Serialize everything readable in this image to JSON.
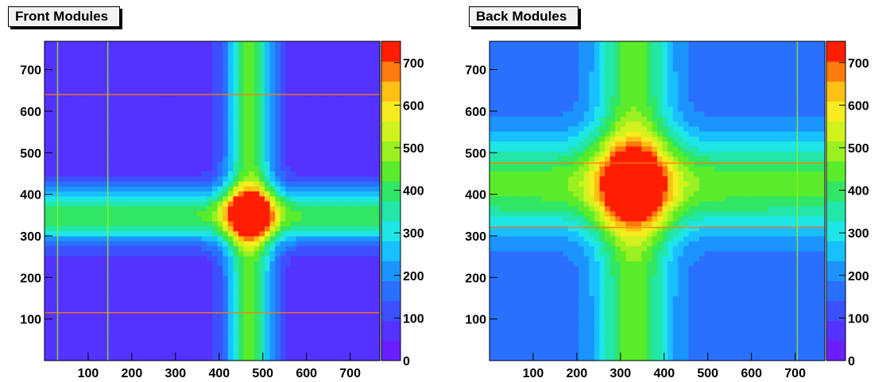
{
  "chart_data": [
    {
      "type": "heatmap",
      "title": "Front Modules",
      "xlabel": "",
      "ylabel": "",
      "xlim": [
        0,
        768
      ],
      "ylim": [
        0,
        768
      ],
      "zlim": [
        0,
        750
      ],
      "x_ticks": [
        "100",
        "200",
        "300",
        "400",
        "500",
        "600",
        "700"
      ],
      "y_ticks": [
        "100",
        "200",
        "300",
        "400",
        "500",
        "600",
        "700"
      ],
      "colorbar_ticks": [
        "0",
        "100",
        "200",
        "300",
        "400",
        "500",
        "600",
        "700"
      ],
      "hot_spot": {
        "x": 470,
        "y": 355,
        "peak": 750
      },
      "vertical_band": {
        "center": 470,
        "half_width": 55,
        "level": 430
      },
      "horizontal_band": {
        "center": 350,
        "half_width": 65,
        "level": 420
      },
      "background_level": 50,
      "bright_lines": {
        "rows": [
          115,
          640
        ],
        "cols": [
          145,
          30
        ]
      },
      "legend": "colorbar-right"
    },
    {
      "type": "heatmap",
      "title": "Back Modules",
      "xlabel": "",
      "ylabel": "",
      "xlim": [
        0,
        768
      ],
      "ylim": [
        0,
        768
      ],
      "zlim": [
        0,
        750
      ],
      "x_ticks": [
        "100",
        "200",
        "300",
        "400",
        "500",
        "600",
        "700"
      ],
      "y_ticks": [
        "100",
        "200",
        "300",
        "400",
        "500",
        "600",
        "700"
      ],
      "colorbar_ticks": [
        "0",
        "100",
        "200",
        "300",
        "400",
        "500",
        "600",
        "700"
      ],
      "hot_spot": {
        "x": 330,
        "y": 425,
        "peak": 750
      },
      "vertical_band": {
        "center": 330,
        "half_width": 85,
        "level": 450
      },
      "horizontal_band": {
        "center": 425,
        "half_width": 110,
        "level": 450
      },
      "background_level": 150,
      "bright_lines": {
        "rows": [
          320,
          475
        ],
        "cols": [
          705
        ]
      },
      "legend": "colorbar-right"
    }
  ]
}
